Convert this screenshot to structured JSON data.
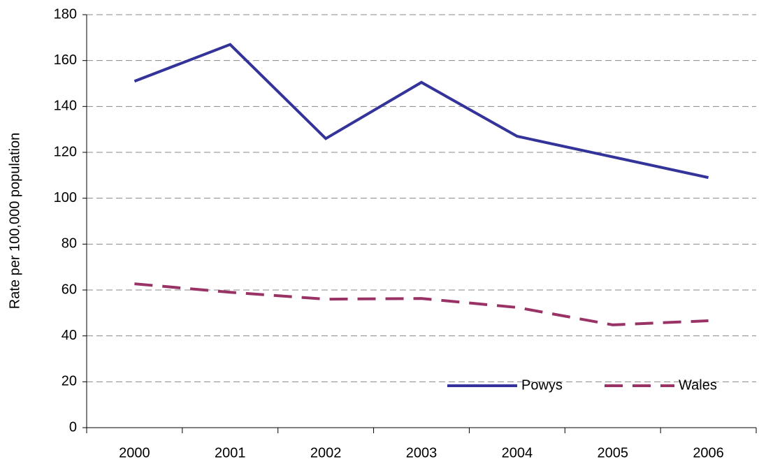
{
  "chart_data": {
    "type": "line",
    "y_label": "Rate per 100,000 population",
    "categories": [
      "2000",
      "2001",
      "2002",
      "2003",
      "2004",
      "2005",
      "2006"
    ],
    "series": [
      {
        "name": "Powys",
        "color": "#333399",
        "style": "solid",
        "values": [
          151,
          167,
          126,
          150.5,
          127,
          118,
          109
        ]
      },
      {
        "name": "Wales",
        "color": "#993366",
        "style": "dashed",
        "values": [
          62.7,
          59,
          56,
          56.3,
          52.4,
          44.8,
          46.6
        ]
      }
    ],
    "ylim": [
      0,
      180
    ],
    "yticks": [
      0,
      20,
      40,
      60,
      80,
      100,
      120,
      140,
      160,
      180
    ],
    "grid": true,
    "legend": "lower right"
  }
}
